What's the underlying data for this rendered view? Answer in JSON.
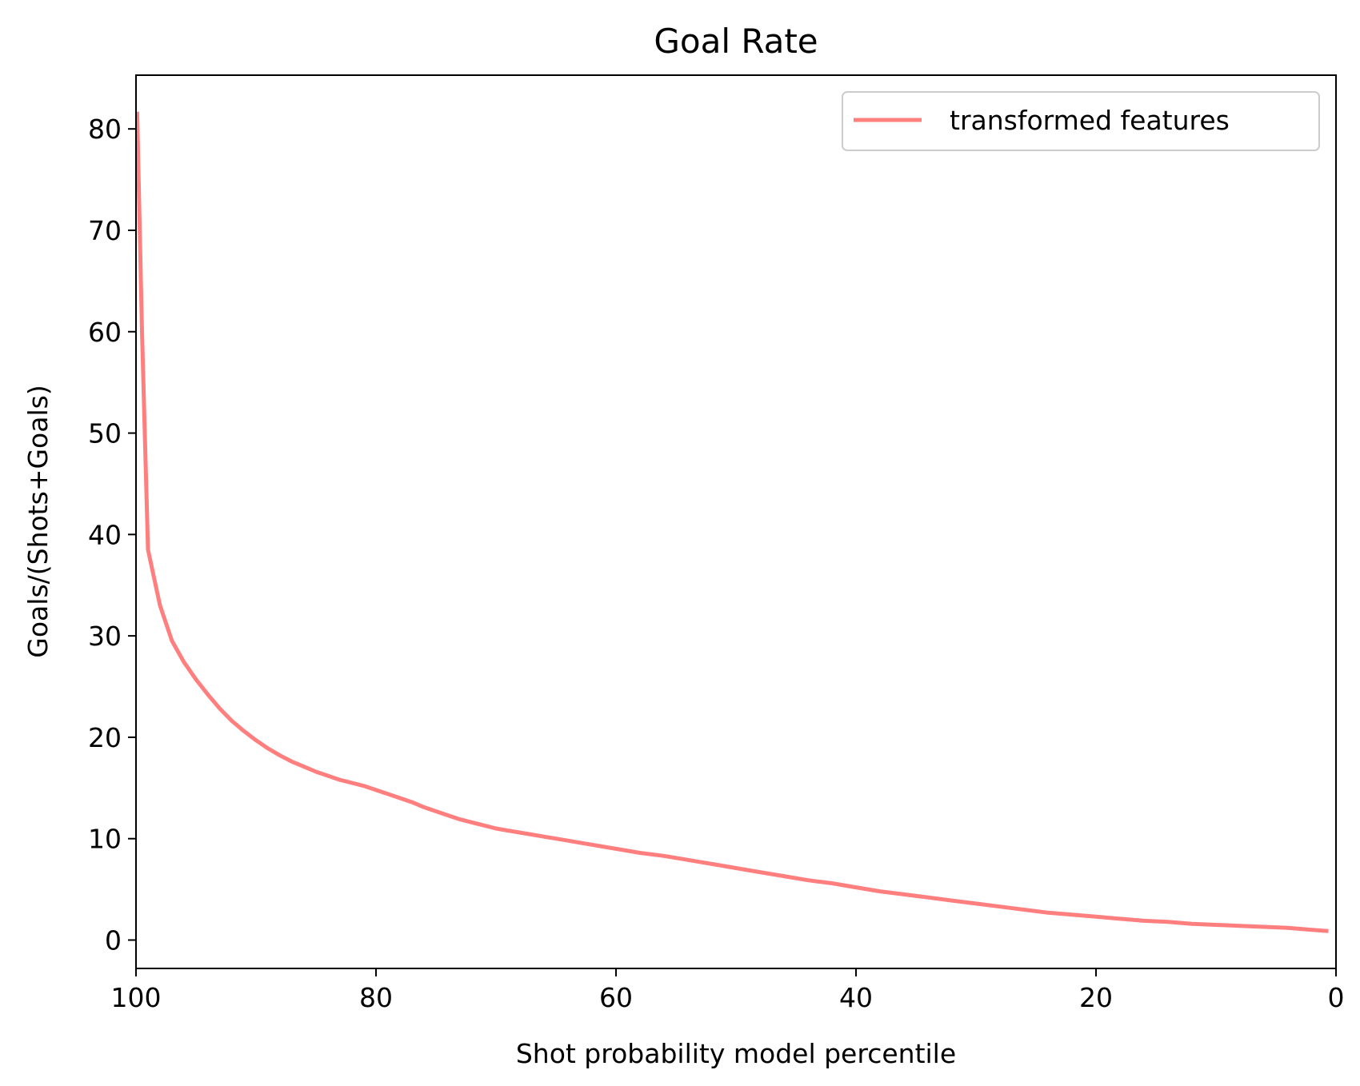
{
  "chart_data": {
    "type": "line",
    "title": "Goal Rate",
    "xlabel": "Shot probability model percentile",
    "ylabel": "Goals/(Shots+Goals)",
    "xlim": [
      100,
      0
    ],
    "ylim": [
      -2.8,
      85.3
    ],
    "xticks": [
      100,
      80,
      60,
      40,
      20,
      0
    ],
    "yticks": [
      0,
      10,
      20,
      30,
      40,
      50,
      60,
      70,
      80
    ],
    "grid": false,
    "legend_position": "top-right",
    "series": [
      {
        "name": "transformed features",
        "color": "#ff7f7f",
        "x": [
          99.9,
          99.5,
          99,
          98,
          97,
          96,
          95,
          94,
          93,
          92,
          91,
          90,
          89,
          88,
          87,
          86,
          85,
          84,
          83,
          82,
          81,
          80,
          79,
          78,
          77,
          76,
          75,
          74,
          73,
          72,
          71,
          70,
          69,
          68,
          67,
          66,
          65,
          64,
          63,
          62,
          61,
          60,
          58,
          56,
          54,
          52,
          50,
          48,
          46,
          44,
          42,
          40,
          38,
          36,
          34,
          32,
          30,
          28,
          26,
          24,
          22,
          20,
          18,
          16,
          14,
          12,
          10,
          8,
          6,
          4,
          2,
          0.8
        ],
        "y": [
          81.5,
          60,
          38.5,
          33,
          29.5,
          27.4,
          25.7,
          24.2,
          22.8,
          21.6,
          20.6,
          19.7,
          18.9,
          18.2,
          17.6,
          17.1,
          16.6,
          16.2,
          15.8,
          15.5,
          15.2,
          14.8,
          14.4,
          14.0,
          13.6,
          13.1,
          12.7,
          12.3,
          11.9,
          11.6,
          11.3,
          11.0,
          10.8,
          10.6,
          10.4,
          10.2,
          10.0,
          9.8,
          9.6,
          9.4,
          9.2,
          9.0,
          8.6,
          8.3,
          7.9,
          7.5,
          7.1,
          6.7,
          6.3,
          5.9,
          5.6,
          5.2,
          4.8,
          4.5,
          4.2,
          3.9,
          3.6,
          3.3,
          3.0,
          2.7,
          2.5,
          2.3,
          2.1,
          1.9,
          1.8,
          1.6,
          1.5,
          1.4,
          1.3,
          1.2,
          1.0,
          0.9
        ]
      }
    ]
  }
}
